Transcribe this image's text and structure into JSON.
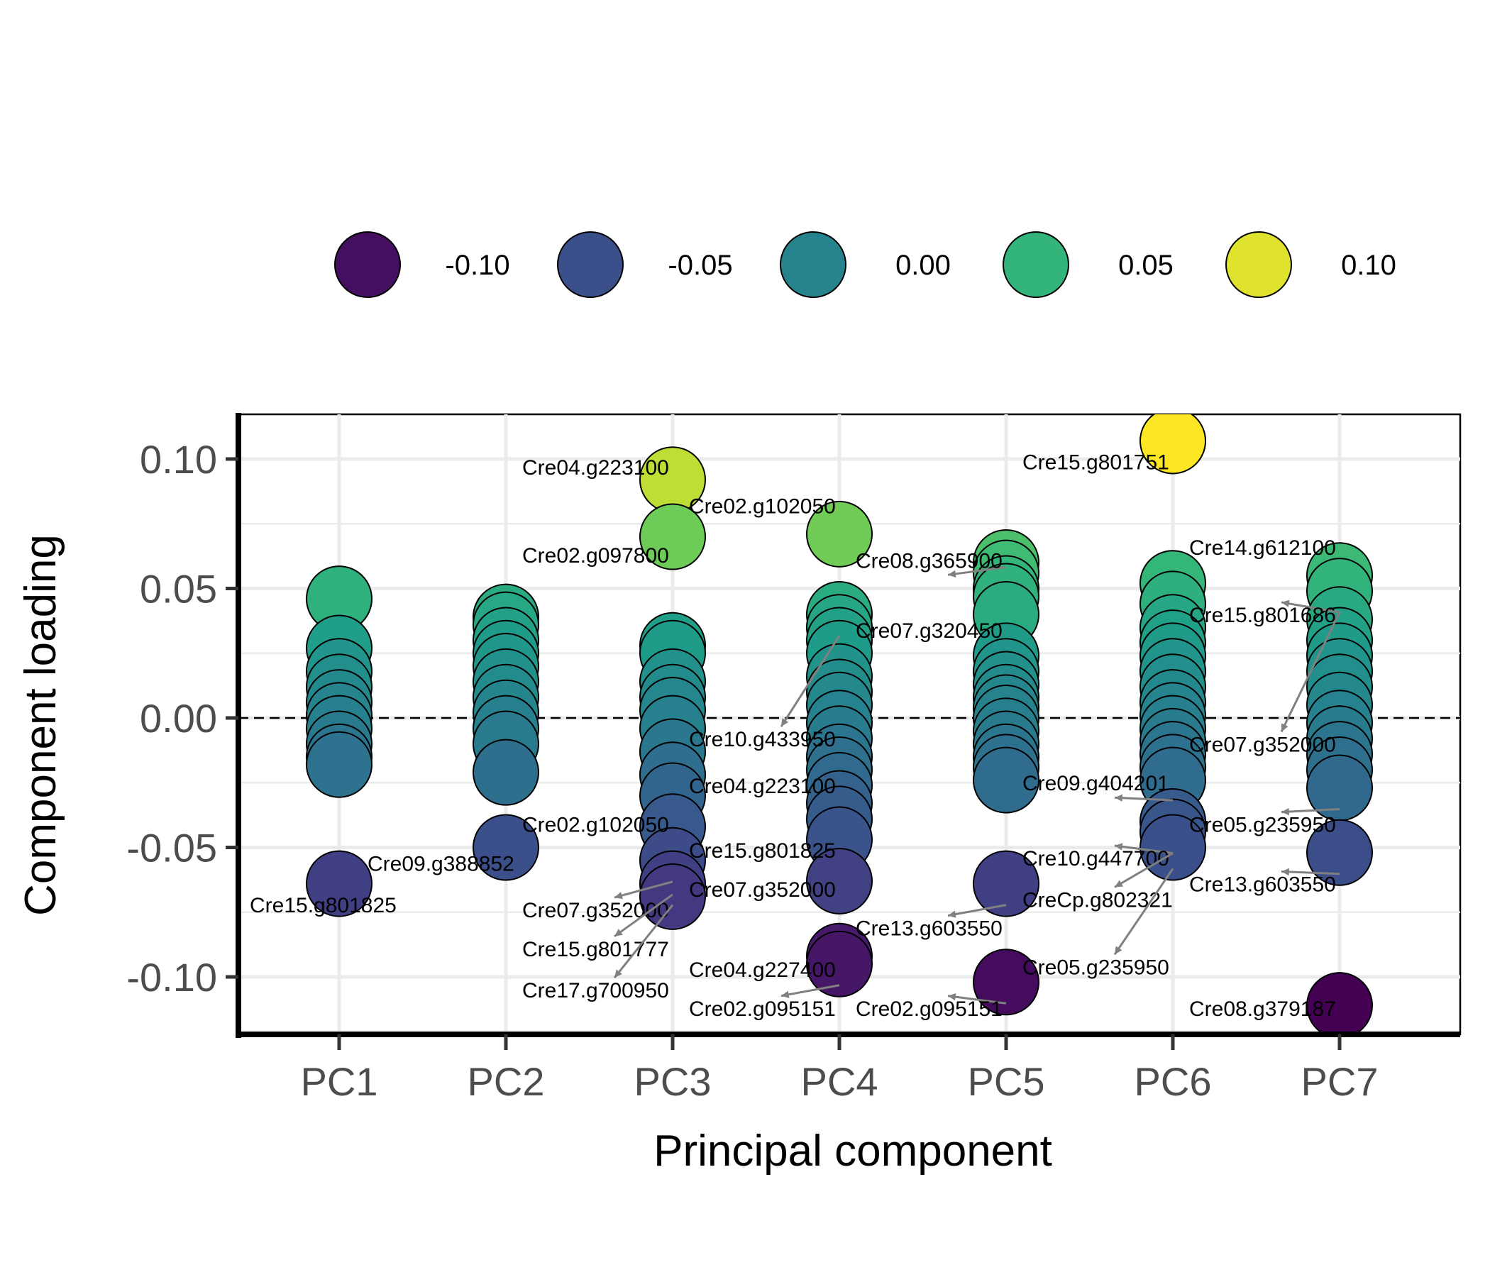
{
  "chart_data": {
    "type": "scatter",
    "title": "",
    "xlabel": "Principal component",
    "ylabel": "Component loading",
    "categories": [
      "PC1",
      "PC2",
      "PC3",
      "PC4",
      "PC5",
      "PC6",
      "PC7"
    ],
    "ylim": [
      -0.12,
      0.115
    ],
    "y_ticks": [
      {
        "value": 0.1,
        "label": "0.10"
      },
      {
        "value": 0.05,
        "label": "0.05"
      },
      {
        "value": 0.0,
        "label": "0.00"
      },
      {
        "value": -0.05,
        "label": "-0.05"
      },
      {
        "value": -0.1,
        "label": "-0.10"
      }
    ],
    "reference_line": {
      "y": 0,
      "style": "dashed"
    },
    "grid": true,
    "color_scale": {
      "palette": "viridis",
      "domain": [
        -0.11,
        0.107
      ],
      "legend_position": "top",
      "legend": [
        {
          "value": -0.1,
          "label": "-0.10"
        },
        {
          "value": -0.05,
          "label": "-0.05"
        },
        {
          "value": 0.0,
          "label": "0.00"
        },
        {
          "value": 0.05,
          "label": "0.05"
        },
        {
          "value": 0.1,
          "label": "0.10"
        }
      ]
    },
    "points": [
      {
        "pc": 0,
        "y": 0.046
      },
      {
        "pc": 0,
        "y": 0.027
      },
      {
        "pc": 0,
        "y": 0.018
      },
      {
        "pc": 0,
        "y": 0.012
      },
      {
        "pc": 0,
        "y": 0.006
      },
      {
        "pc": 0,
        "y": 0.001
      },
      {
        "pc": 0,
        "y": -0.004
      },
      {
        "pc": 0,
        "y": -0.01
      },
      {
        "pc": 0,
        "y": -0.015
      },
      {
        "pc": 0,
        "y": -0.018
      },
      {
        "pc": 0,
        "y": -0.064
      },
      {
        "pc": 1,
        "y": 0.039
      },
      {
        "pc": 1,
        "y": 0.036
      },
      {
        "pc": 1,
        "y": 0.03
      },
      {
        "pc": 1,
        "y": 0.025
      },
      {
        "pc": 1,
        "y": 0.02
      },
      {
        "pc": 1,
        "y": 0.014
      },
      {
        "pc": 1,
        "y": 0.008
      },
      {
        "pc": 1,
        "y": 0.002
      },
      {
        "pc": 1,
        "y": -0.004
      },
      {
        "pc": 1,
        "y": -0.01
      },
      {
        "pc": 1,
        "y": -0.021
      },
      {
        "pc": 1,
        "y": -0.05
      },
      {
        "pc": 2,
        "y": 0.092
      },
      {
        "pc": 2,
        "y": 0.07
      },
      {
        "pc": 2,
        "y": 0.028
      },
      {
        "pc": 2,
        "y": 0.025
      },
      {
        "pc": 2,
        "y": 0.014
      },
      {
        "pc": 2,
        "y": 0.008
      },
      {
        "pc": 2,
        "y": 0.003
      },
      {
        "pc": 2,
        "y": -0.004
      },
      {
        "pc": 2,
        "y": -0.013
      },
      {
        "pc": 2,
        "y": -0.022
      },
      {
        "pc": 2,
        "y": -0.03
      },
      {
        "pc": 2,
        "y": -0.042
      },
      {
        "pc": 2,
        "y": -0.055
      },
      {
        "pc": 2,
        "y": -0.064
      },
      {
        "pc": 2,
        "y": -0.069
      },
      {
        "pc": 3,
        "y": 0.071
      },
      {
        "pc": 3,
        "y": 0.04
      },
      {
        "pc": 3,
        "y": 0.035
      },
      {
        "pc": 3,
        "y": 0.03
      },
      {
        "pc": 3,
        "y": 0.025
      },
      {
        "pc": 3,
        "y": 0.016
      },
      {
        "pc": 3,
        "y": 0.01
      },
      {
        "pc": 3,
        "y": 0.005
      },
      {
        "pc": 3,
        "y": -0.002
      },
      {
        "pc": 3,
        "y": -0.008
      },
      {
        "pc": 3,
        "y": -0.015
      },
      {
        "pc": 3,
        "y": -0.02
      },
      {
        "pc": 3,
        "y": -0.026
      },
      {
        "pc": 3,
        "y": -0.033
      },
      {
        "pc": 3,
        "y": -0.039
      },
      {
        "pc": 3,
        "y": -0.047
      },
      {
        "pc": 3,
        "y": -0.063
      },
      {
        "pc": 3,
        "y": -0.092
      },
      {
        "pc": 3,
        "y": -0.095
      },
      {
        "pc": 4,
        "y": 0.06
      },
      {
        "pc": 4,
        "y": 0.056
      },
      {
        "pc": 4,
        "y": 0.05
      },
      {
        "pc": 4,
        "y": 0.047
      },
      {
        "pc": 4,
        "y": 0.04
      },
      {
        "pc": 4,
        "y": 0.024
      },
      {
        "pc": 4,
        "y": 0.018
      },
      {
        "pc": 4,
        "y": 0.013
      },
      {
        "pc": 4,
        "y": 0.008
      },
      {
        "pc": 4,
        "y": 0.004
      },
      {
        "pc": 4,
        "y": 0.0
      },
      {
        "pc": 4,
        "y": -0.005
      },
      {
        "pc": 4,
        "y": -0.01
      },
      {
        "pc": 4,
        "y": -0.015
      },
      {
        "pc": 4,
        "y": -0.019
      },
      {
        "pc": 4,
        "y": -0.024
      },
      {
        "pc": 4,
        "y": -0.064
      },
      {
        "pc": 4,
        "y": -0.102
      },
      {
        "pc": 5,
        "y": 0.107
      },
      {
        "pc": 5,
        "y": 0.052
      },
      {
        "pc": 5,
        "y": 0.044
      },
      {
        "pc": 5,
        "y": 0.035
      },
      {
        "pc": 5,
        "y": 0.029
      },
      {
        "pc": 5,
        "y": 0.024
      },
      {
        "pc": 5,
        "y": 0.018
      },
      {
        "pc": 5,
        "y": 0.012
      },
      {
        "pc": 5,
        "y": 0.006
      },
      {
        "pc": 5,
        "y": 0.001
      },
      {
        "pc": 5,
        "y": -0.004
      },
      {
        "pc": 5,
        "y": -0.009
      },
      {
        "pc": 5,
        "y": -0.014
      },
      {
        "pc": 5,
        "y": -0.019
      },
      {
        "pc": 5,
        "y": -0.024
      },
      {
        "pc": 5,
        "y": -0.04
      },
      {
        "pc": 5,
        "y": -0.044
      },
      {
        "pc": 5,
        "y": -0.05
      },
      {
        "pc": 6,
        "y": 0.055
      },
      {
        "pc": 6,
        "y": 0.049
      },
      {
        "pc": 6,
        "y": 0.038
      },
      {
        "pc": 6,
        "y": 0.03
      },
      {
        "pc": 6,
        "y": 0.024
      },
      {
        "pc": 6,
        "y": 0.018
      },
      {
        "pc": 6,
        "y": 0.012
      },
      {
        "pc": 6,
        "y": 0.005
      },
      {
        "pc": 6,
        "y": -0.002
      },
      {
        "pc": 6,
        "y": -0.008
      },
      {
        "pc": 6,
        "y": -0.014
      },
      {
        "pc": 6,
        "y": -0.02
      },
      {
        "pc": 6,
        "y": -0.027
      },
      {
        "pc": 6,
        "y": -0.052
      },
      {
        "pc": 6,
        "y": -0.111
      }
    ],
    "annotations": [
      {
        "text": "Cre15.g801825",
        "pc": 0,
        "y": -0.064,
        "lx": -0.0,
        "ly": -0.075,
        "arrow": false
      },
      {
        "text": "Cre09.g388852",
        "pc": 0,
        "y": -0.064,
        "lx": 0.7,
        "ly": -0.059,
        "arrow": false
      },
      {
        "text": "Cre02.g102050",
        "pc": 1,
        "y": -0.05,
        "lx": 1.99,
        "ly": -0.044,
        "arrow": false
      },
      {
        "text": "Cre04.g223100",
        "pc": 2,
        "y": 0.092,
        "lx": 1.99,
        "ly": 0.094,
        "arrow": false
      },
      {
        "text": "Cre02.g097800",
        "pc": 2,
        "y": 0.07,
        "lx": 1.99,
        "ly": 0.06,
        "arrow": false
      },
      {
        "text": "Cre02.g102050",
        "pc": 2,
        "y": 0.07,
        "lx": 2.99,
        "ly": 0.079,
        "arrow": false
      },
      {
        "text": "Cre15.g801825",
        "pc": 2,
        "y": -0.055,
        "lx": 2.99,
        "ly": -0.054,
        "arrow": false
      },
      {
        "text": "Cre04.g223100",
        "pc": 2,
        "y": -0.03,
        "lx": 2.99,
        "ly": -0.029,
        "arrow": false
      },
      {
        "text": "Cre07.g352000",
        "pc": 2,
        "y": -0.055,
        "lx": 1.99,
        "ly": -0.077,
        "arrow": true
      },
      {
        "text": "Cre15.g801777",
        "pc": 2,
        "y": -0.06,
        "lx": 1.99,
        "ly": -0.092,
        "arrow": true
      },
      {
        "text": "Cre17.g700950",
        "pc": 2,
        "y": -0.064,
        "lx": 1.99,
        "ly": -0.108,
        "arrow": true
      },
      {
        "text": "Cre07.g352000",
        "pc": 3,
        "y": -0.063,
        "lx": 2.99,
        "ly": -0.069,
        "arrow": false
      },
      {
        "text": "Cre10.g433950",
        "pc": 3,
        "y": 0.04,
        "lx": 2.99,
        "ly": -0.011,
        "arrow": true
      },
      {
        "text": "Cre04.g227400",
        "pc": 3,
        "y": -0.092,
        "lx": 2.99,
        "ly": -0.1,
        "arrow": false
      },
      {
        "text": "Cre02.g095151",
        "pc": 3,
        "y": -0.095,
        "lx": 2.99,
        "ly": -0.115,
        "arrow": true
      },
      {
        "text": "Cre08.g365900",
        "pc": 4,
        "y": 0.05,
        "lx": 3.99,
        "ly": 0.058,
        "arrow": true
      },
      {
        "text": "Cre07.g320450",
        "pc": 4,
        "y": 0.04,
        "lx": 3.99,
        "ly": 0.031,
        "arrow": false
      },
      {
        "text": "Cre13.g603550",
        "pc": 4,
        "y": -0.064,
        "lx": 3.99,
        "ly": -0.084,
        "arrow": true
      },
      {
        "text": "Cre02.g095151",
        "pc": 4,
        "y": -0.102,
        "lx": 3.99,
        "ly": -0.115,
        "arrow": true
      },
      {
        "text": "Cre15.g801751",
        "pc": 5,
        "y": 0.107,
        "lx": 4.99,
        "ly": 0.096,
        "arrow": false
      },
      {
        "text": "Cre09.g404201",
        "pc": 5,
        "y": -0.04,
        "lx": 4.99,
        "ly": -0.028,
        "arrow": true
      },
      {
        "text": "Cre10.g447700",
        "pc": 5,
        "y": -0.044,
        "lx": 4.99,
        "ly": -0.057,
        "arrow": true
      },
      {
        "text": "CreCp.g802321",
        "pc": 5,
        "y": -0.044,
        "lx": 4.99,
        "ly": -0.073,
        "arrow": true
      },
      {
        "text": "Cre05.g235950",
        "pc": 5,
        "y": -0.05,
        "lx": 4.99,
        "ly": -0.099,
        "arrow": true
      },
      {
        "text": "Cre14.g612100",
        "pc": 6,
        "y": 0.049,
        "lx": 5.99,
        "ly": 0.063,
        "arrow": false
      },
      {
        "text": "Cre15.g801686",
        "pc": 6,
        "y": 0.049,
        "lx": 5.99,
        "ly": 0.037,
        "arrow": true
      },
      {
        "text": "Cre07.g352000",
        "pc": 6,
        "y": 0.049,
        "lx": 5.99,
        "ly": -0.013,
        "arrow": true
      },
      {
        "text": "Cre05.g235950",
        "pc": 6,
        "y": -0.027,
        "lx": 5.99,
        "ly": -0.044,
        "arrow": true
      },
      {
        "text": "Cre13.g603550",
        "pc": 6,
        "y": -0.052,
        "lx": 5.99,
        "ly": -0.067,
        "arrow": true
      },
      {
        "text": "Cre08.g379187",
        "pc": 6,
        "y": -0.111,
        "lx": 5.99,
        "ly": -0.115,
        "arrow": false
      }
    ]
  }
}
